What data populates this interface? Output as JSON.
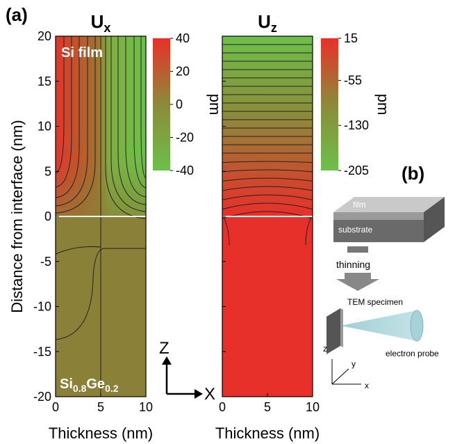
{
  "panel_labels": {
    "a": "(a)",
    "b": "(b)"
  },
  "chart_data": [
    {
      "type": "heatmap",
      "title": {
        "main": "U",
        "sub": "x"
      },
      "xlabel": "Thickness (nm)",
      "ylabel": "Distance from interface (nm)",
      "xlim": [
        0,
        10
      ],
      "xticks": [
        0,
        5,
        10
      ],
      "ylim": [
        -20,
        20
      ],
      "yticks": [
        -20,
        -15,
        -10,
        -5,
        0,
        5,
        10,
        15,
        20
      ],
      "colorbar": {
        "label": "pm",
        "clim": [
          -40,
          40
        ],
        "ticks": [
          40,
          20,
          0,
          -20,
          -40
        ],
        "colormap": [
          "#6cc04a",
          "#8c8a3a",
          "#e8302a"
        ]
      },
      "annotations": {
        "top": "Si film",
        "bottom": [
          "Si",
          "0.8",
          "Ge",
          "0.2"
        ]
      }
    },
    {
      "type": "heatmap",
      "title": {
        "main": "U",
        "sub": "z"
      },
      "xlabel": "Thickness (nm)",
      "xlim": [
        0,
        10
      ],
      "xticks": [
        0,
        5,
        10
      ],
      "ylim": [
        -20,
        20
      ],
      "yticks": [
        -20,
        -15,
        -10,
        -5,
        0,
        5,
        10,
        15,
        20
      ],
      "colorbar": {
        "label": "pm",
        "clim": [
          -205,
          15
        ],
        "ticks": [
          15,
          -55,
          -130,
          -205
        ],
        "colormap": [
          "#6cc04a",
          "#8c8a3a",
          "#e8302a"
        ]
      }
    }
  ],
  "axes_glyph": {
    "z": "Z",
    "x": "X"
  },
  "diagram": {
    "film": "film",
    "substrate": "substrate",
    "thinning": "thinning",
    "specimen": "TEM specimen",
    "probe": "electron probe",
    "z": "z",
    "y": "y",
    "x": "x"
  }
}
